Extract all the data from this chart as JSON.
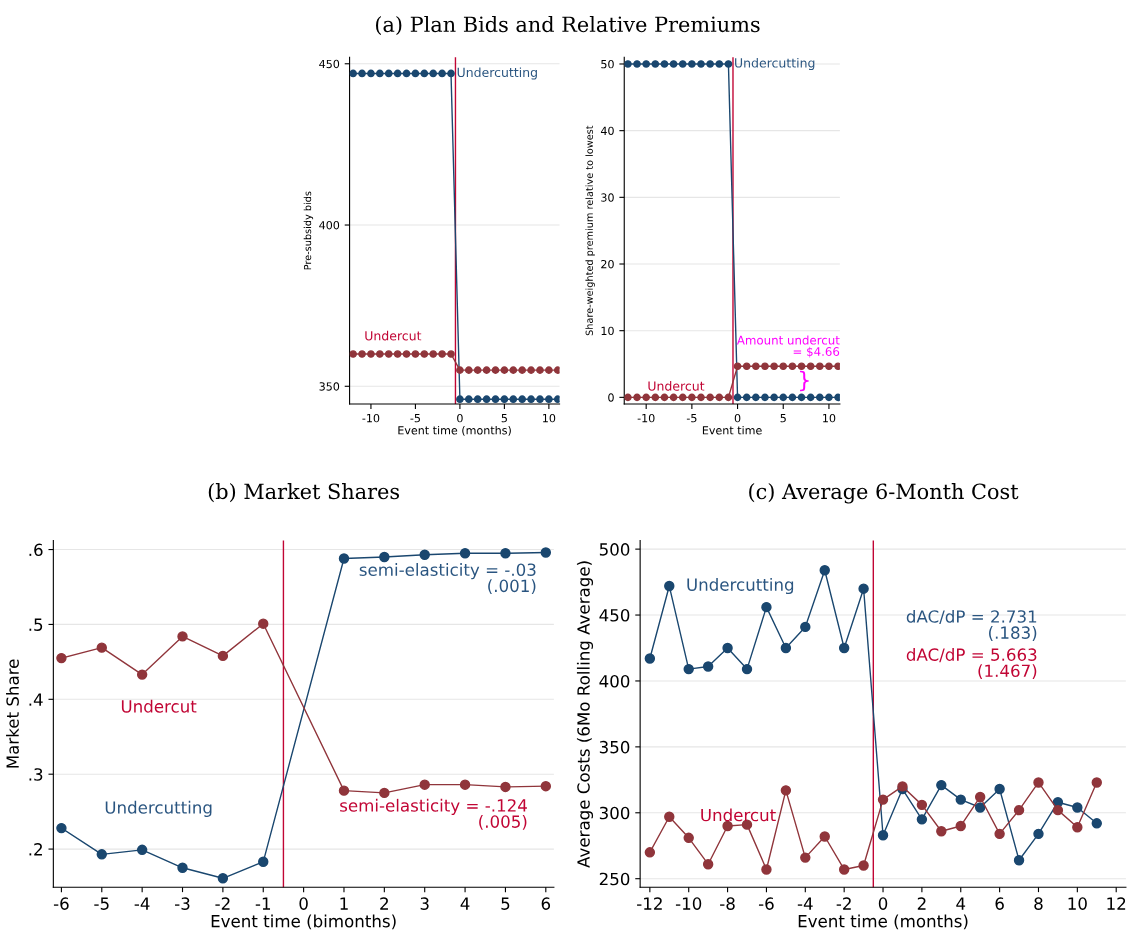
{
  "chart_data": [
    {
      "type": "line",
      "title": "(a) Plan Bids and Relative Premiums",
      "xlabel": "Event time (months)",
      "ylabel": "Pre-subsidy bids",
      "x": [
        -12,
        -11,
        -10,
        -9,
        -8,
        -7,
        -6,
        -5,
        -4,
        -3,
        -2,
        -1,
        0,
        1,
        2,
        3,
        4,
        5,
        6,
        7,
        8,
        9,
        10,
        11
      ],
      "series": [
        {
          "name": "Undercutting",
          "color": "#1a476f",
          "values": [
            447,
            447,
            447,
            447,
            447,
            447,
            447,
            447,
            447,
            447,
            447,
            447,
            346,
            346,
            346,
            346,
            346,
            346,
            346,
            346,
            346,
            346,
            346,
            346
          ]
        },
        {
          "name": "Undercut",
          "color": "#90353b",
          "values": [
            360,
            360,
            360,
            360,
            360,
            360,
            360,
            360,
            360,
            360,
            360,
            360,
            355,
            355,
            355,
            355,
            355,
            355,
            355,
            355,
            355,
            355,
            355,
            355
          ]
        }
      ],
      "xlim": [
        -12.4,
        11.2
      ],
      "xticks": [
        -10,
        -5,
        0,
        5,
        10
      ],
      "ylim": [
        344.5,
        452
      ],
      "yticks": [
        350,
        400,
        450
      ],
      "ref_lines": [
        {
          "axis": "x",
          "value": -0.5,
          "color": "#c10534"
        }
      ],
      "grid": "y",
      "legend": false,
      "marker": "circle",
      "line_style": "solid"
    },
    {
      "type": "line",
      "xlabel": "Event time",
      "ylabel": "Share-weighted premium relative to lowest",
      "x": [
        -12,
        -11,
        -10,
        -9,
        -8,
        -7,
        -6,
        -5,
        -4,
        -3,
        -2,
        -1,
        0,
        1,
        2,
        3,
        4,
        5,
        6,
        7,
        8,
        9,
        10,
        11
      ],
      "series": [
        {
          "name": "Undercutting",
          "color": "#1a476f",
          "values": [
            50,
            50,
            50,
            50,
            50,
            50,
            50,
            50,
            50,
            50,
            50,
            50,
            0,
            0,
            0,
            0,
            0,
            0,
            0,
            0,
            0,
            0,
            0,
            0
          ]
        },
        {
          "name": "Undercut",
          "color": "#90353b",
          "values": [
            0,
            0,
            0,
            0,
            0,
            0,
            0,
            0,
            0,
            0,
            0,
            0,
            4.66,
            4.66,
            4.66,
            4.66,
            4.66,
            4.66,
            4.66,
            4.66,
            4.66,
            4.66,
            4.66,
            4.66
          ]
        }
      ],
      "annotations": [
        {
          "text": "Amount undercut\n= $4.66",
          "x": 11,
          "y": 4.66
        },
        "}"
      ],
      "xlim": [
        -12.4,
        11.2
      ],
      "xticks": [
        -10,
        -5,
        0,
        5,
        10
      ],
      "ylim": [
        -1,
        51
      ],
      "yticks": [
        0,
        10,
        20,
        30,
        40,
        50
      ],
      "ref_lines": [
        {
          "axis": "x",
          "value": -0.5,
          "color": "#c10534"
        }
      ],
      "grid": "y",
      "legend": false,
      "marker": "circle",
      "line_style": "solid"
    },
    {
      "type": "line",
      "title": "(b) Market Shares",
      "xlabel": "Event time (bimonths)",
      "ylabel": "Market Share",
      "x": [
        -6,
        -5,
        -4,
        -3,
        -2,
        -1,
        1,
        2,
        3,
        4,
        5,
        6
      ],
      "series": [
        {
          "name": "Undercutting",
          "color": "#1a476f",
          "values": [
            0.228,
            0.193,
            0.199,
            0.175,
            0.161,
            0.183,
            0.588,
            0.59,
            0.593,
            0.595,
            0.595,
            0.596
          ]
        },
        {
          "name": "Undercut",
          "color": "#90353b",
          "values": [
            0.455,
            0.469,
            0.433,
            0.484,
            0.458,
            0.501,
            0.278,
            0.275,
            0.286,
            0.286,
            0.283,
            0.284
          ]
        }
      ],
      "annotations": [
        "semi-elasticity = -.03\n(.001)",
        "semi-elasticity = -.124\n(.005)"
      ],
      "xlim": [
        -6.2,
        6.2
      ],
      "xticks": [
        -6,
        -5,
        -4,
        -3,
        -2,
        -1,
        0,
        1,
        2,
        3,
        4,
        5,
        6
      ],
      "ylim": [
        0.149,
        0.612
      ],
      "yticks": [
        {
          "value": 0.2,
          "label": ".2"
        },
        {
          "value": 0.3,
          "label": ".3"
        },
        {
          "value": 0.4,
          "label": ".4"
        },
        {
          "value": 0.5,
          "label": ".5"
        },
        {
          "value": 0.6,
          "label": ".6"
        }
      ],
      "ref_lines": [
        {
          "axis": "x",
          "value": -0.5,
          "color": "#c10534"
        }
      ],
      "grid": "y",
      "legend": false,
      "marker": "circle",
      "line_style": "solid"
    },
    {
      "type": "line",
      "title": "(c) Average 6-Month Cost",
      "xlabel": "Event time (months)",
      "ylabel": "Average Costs (6Mo Rolling Average)",
      "x": [
        -12,
        -11,
        -10,
        -9,
        -8,
        -7,
        -6,
        -5,
        -4,
        -3,
        -2,
        -1,
        0,
        1,
        2,
        3,
        4,
        5,
        6,
        7,
        8,
        9,
        10,
        11
      ],
      "series": [
        {
          "name": "Undercutting",
          "color": "#1a476f",
          "values": [
            417,
            472,
            409,
            411,
            425,
            409,
            456,
            425,
            441,
            484,
            425,
            470,
            283,
            318,
            295,
            321,
            310,
            304,
            318,
            264,
            284,
            308,
            304,
            292
          ]
        },
        {
          "name": "Undercut",
          "color": "#90353b",
          "values": [
            270,
            297,
            281,
            261,
            290,
            291,
            257,
            317,
            266,
            282,
            257,
            260,
            310,
            320,
            306,
            286,
            290,
            312,
            284,
            302,
            323,
            302,
            289,
            323
          ]
        }
      ],
      "annotations": [
        "dAC/dP = 2.731\n(.183)",
        "dAC/dP = 5.663\n(1.467)"
      ],
      "xlim": [
        -12.5,
        12.5
      ],
      "xticks": [
        -12,
        -10,
        -8,
        -6,
        -4,
        -2,
        0,
        2,
        4,
        6,
        8,
        10,
        12
      ],
      "ylim": [
        243.5,
        506.5
      ],
      "yticks": [
        250,
        300,
        350,
        400,
        450,
        500
      ],
      "ref_lines": [
        {
          "axis": "x",
          "value": -0.5,
          "color": "#c10534"
        }
      ],
      "grid": "y",
      "legend": false,
      "marker": "circle",
      "line_style": "solid"
    }
  ]
}
